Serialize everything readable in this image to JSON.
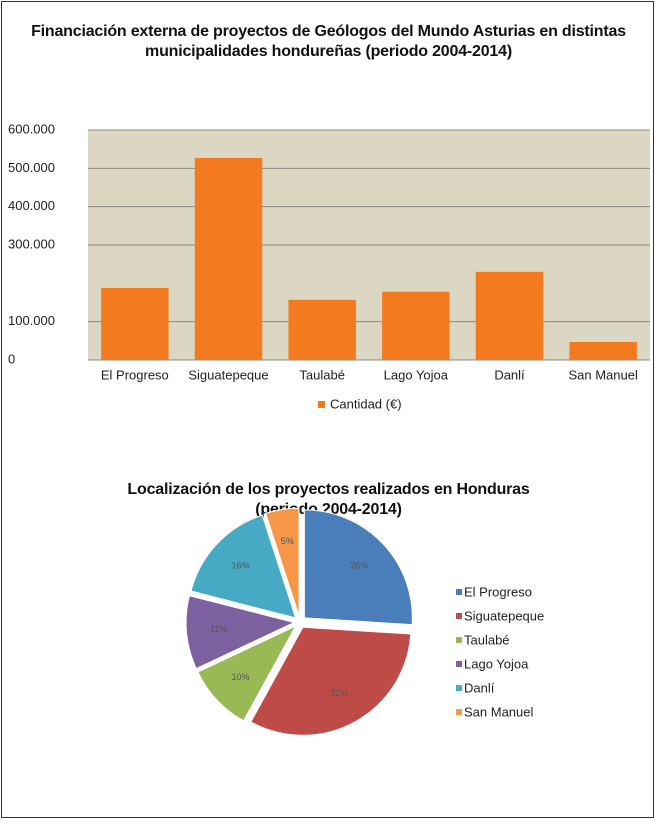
{
  "chart_data": [
    {
      "type": "bar",
      "title": "Financiación externa de proyectos de Geólogos del Mundo Asturias en distintas municipalidades hondureñas (periodo 2004-2014)",
      "categories": [
        "El Progreso",
        "Siguatepeque",
        "Taulabé",
        "Lago Yojoa",
        "Danlí",
        "San Manuel"
      ],
      "series": [
        {
          "name": "Cantidad (€)",
          "color": "#f47a20",
          "values": [
            188000,
            527000,
            157000,
            178000,
            230000,
            47000
          ]
        }
      ],
      "ylim": [
        0,
        600000
      ],
      "yticks": [
        {
          "value": 0,
          "label": "0"
        },
        {
          "value": 100000,
          "label": "100.000"
        },
        {
          "value": 300000,
          "label": "300.000"
        },
        {
          "value": 400000,
          "label": "400.000"
        },
        {
          "value": 500000,
          "label": "500.000"
        },
        {
          "value": 600000,
          "label": "600.000"
        }
      ],
      "grid": true,
      "legend": "bottom"
    },
    {
      "type": "pie",
      "title": "Localización de los proyectos realizados en Honduras (periodo 2004-2014)",
      "categories": [
        "El Progreso",
        "Siguatepeque",
        "Taulabé",
        "Lago Yojoa",
        "Danlí",
        "San Manuel"
      ],
      "values": [
        26,
        32,
        10,
        11,
        16,
        5
      ],
      "value_labels": [
        "26%",
        "32%",
        "10%",
        "11%",
        "16%",
        "5%"
      ],
      "colors": [
        "#4a7ebb",
        "#be4b48",
        "#98b954",
        "#7d60a0",
        "#46aac5",
        "#f79646"
      ],
      "legend": "right"
    }
  ]
}
